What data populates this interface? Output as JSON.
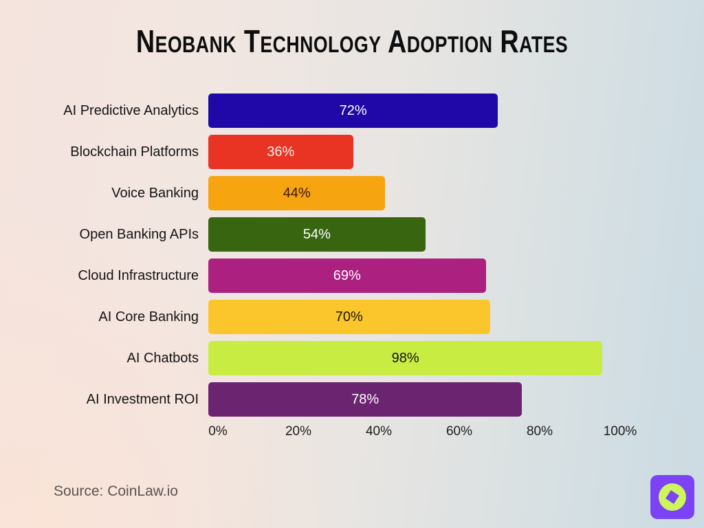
{
  "title": "Neobank Technology Adoption Rates",
  "source": "Source: CoinLaw.io",
  "logo": {
    "name": "coinlaw-compass-logo",
    "bg_color": "#7c42f4",
    "circle_color": "#cdf65c",
    "needle_color": "#7c42f4"
  },
  "chart_data": {
    "type": "bar",
    "orientation": "horizontal",
    "title": "Neobank Technology Adoption Rates",
    "categories": [
      "AI Predictive Analytics",
      "Blockchain Platforms",
      "Voice Banking",
      "Open Banking APIs",
      "Cloud Infrastructure",
      "AI Core Banking",
      "AI Chatbots",
      "AI Investment ROI"
    ],
    "values": [
      72,
      36,
      44,
      54,
      69,
      70,
      98,
      78
    ],
    "value_suffix": "%",
    "bar_colors": [
      "#2008a8",
      "#e93323",
      "#f6a40f",
      "#38650f",
      "#ac2080",
      "#fbc62b",
      "#c9ec43",
      "#6b2470"
    ],
    "value_label_colors": [
      "#ffffff",
      "#fdf3f1",
      "#3f150b",
      "#ffffff",
      "#ffffff",
      "#1f1405",
      "#131313",
      "#ffffff"
    ],
    "x_ticks": [
      "0%",
      "20%",
      "40%",
      "60%",
      "80%",
      "100%"
    ],
    "xlim": [
      0,
      100
    ],
    "grid": false,
    "legend": false
  }
}
